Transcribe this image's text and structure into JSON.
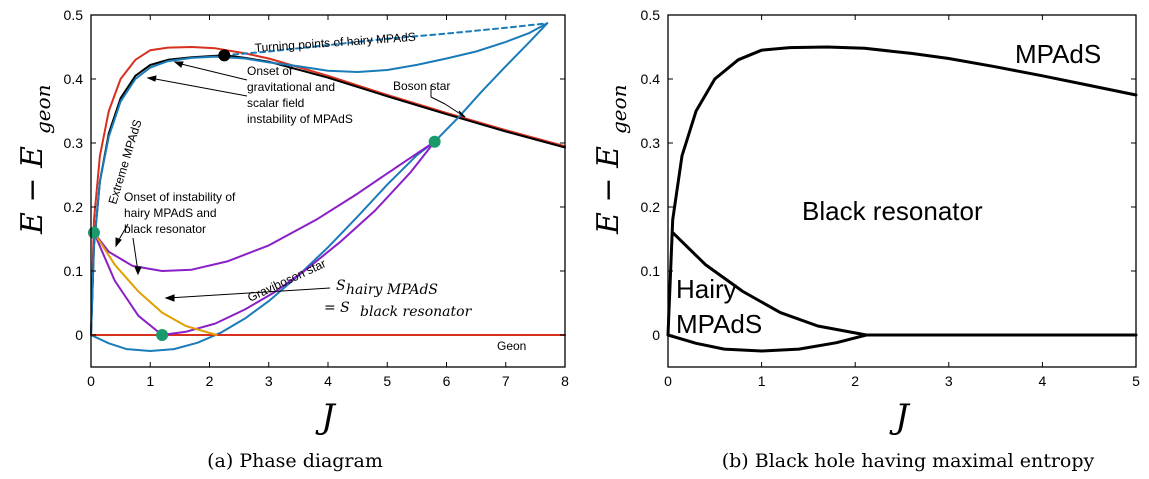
{
  "figure": {
    "panel_a_caption": "(a) Phase diagram",
    "panel_b_caption": "(b) Black hole having maximal entropy"
  },
  "colors": {
    "red": "#d7301f",
    "blue": "#1a7bb9",
    "purple": "#8a1fc8",
    "orange": "#e0a000",
    "green": "#1a9a6a",
    "black": "#000000"
  },
  "chart_data": [
    {
      "type": "line",
      "xlabel": "J",
      "ylabel_main": "E − E",
      "ylabel_sub": "geon",
      "xlim": [
        0,
        8
      ],
      "ylim": [
        -0.05,
        0.5
      ],
      "xticks": [
        "0",
        "1",
        "2",
        "3",
        "4",
        "5",
        "6",
        "7",
        "8"
      ],
      "yticks": [
        "0",
        "0.1",
        "0.2",
        "0.3",
        "0.4",
        "0.5"
      ],
      "series": [
        {
          "name": "Extreme MPAdS",
          "color": "red",
          "x": [
            0,
            0.05,
            0.15,
            0.3,
            0.5,
            0.75,
            1.0,
            1.3,
            1.7,
            2.1,
            2.6,
            3.0,
            4.0,
            5.0,
            6.0,
            7.0,
            8.0
          ],
          "y": [
            0,
            0.18,
            0.28,
            0.35,
            0.4,
            0.43,
            0.445,
            0.449,
            0.45,
            0.448,
            0.44,
            0.432,
            0.405,
            0.375,
            0.347,
            0.32,
            0.295
          ]
        },
        {
          "name": "Onset of gravitational and scalar field instability of MPAdS",
          "color": "black",
          "x": [
            0,
            0.05,
            0.15,
            0.3,
            0.5,
            0.75,
            1.0,
            1.3,
            1.7,
            2.05,
            2.25,
            2.6,
            3.0,
            4.0,
            5.0,
            6.0,
            7.0,
            8.0
          ],
          "y": [
            0,
            0.14,
            0.24,
            0.315,
            0.37,
            0.405,
            0.422,
            0.43,
            0.434,
            0.436,
            0.437,
            0.433,
            0.427,
            0.402,
            0.373,
            0.345,
            0.318,
            0.293
          ]
        },
        {
          "name": "Boson star",
          "color": "blue",
          "x": [
            0,
            0.05,
            0.15,
            0.3,
            0.5,
            0.75,
            1.0,
            1.3,
            1.7,
            2.1,
            2.6,
            3.0,
            3.5,
            4.0,
            4.5,
            5.0,
            5.5,
            6.0,
            6.5,
            7.0,
            7.4,
            7.7
          ],
          "y": [
            0,
            0.14,
            0.24,
            0.31,
            0.365,
            0.4,
            0.418,
            0.428,
            0.433,
            0.435,
            0.432,
            0.426,
            0.42,
            0.413,
            0.411,
            0.414,
            0.422,
            0.432,
            0.443,
            0.458,
            0.472,
            0.487
          ]
        },
        {
          "name": "Graviboson star",
          "color": "blue",
          "x": [
            0,
            0.3,
            0.6,
            1.0,
            1.4,
            1.8,
            2.2,
            2.6,
            3.0,
            3.5,
            4.0,
            4.5,
            5.0,
            5.5,
            5.8,
            6.2,
            6.6,
            7.0,
            7.4,
            7.7
          ],
          "y": [
            0,
            -0.013,
            -0.022,
            -0.025,
            -0.022,
            -0.012,
            0.004,
            0.026,
            0.053,
            0.093,
            0.137,
            0.185,
            0.235,
            0.281,
            0.302,
            0.34,
            0.381,
            0.42,
            0.458,
            0.487
          ]
        },
        {
          "name": "Turning points of hairy MPAdS",
          "color": "blue",
          "dashed": true,
          "x": [
            2.25,
            3.0,
            4.0,
            5.0,
            6.0,
            7.0,
            7.7
          ],
          "y": [
            0.437,
            0.443,
            0.453,
            0.463,
            0.471,
            0.48,
            0.487
          ]
        },
        {
          "name": "Onset of instability of hairy MPAdS and black resonator",
          "color": "purple",
          "x": [
            0.05,
            0.3,
            0.7,
            1.2,
            1.7,
            2.3,
            3.0,
            3.8,
            4.5,
            5.2,
            5.8
          ],
          "y": [
            0.16,
            0.13,
            0.108,
            0.1,
            0.102,
            0.115,
            0.14,
            0.18,
            0.221,
            0.265,
            0.302
          ]
        },
        {
          "name": "Geon",
          "color": "red",
          "x": [
            0,
            8
          ],
          "y": [
            0,
            0
          ]
        },
        {
          "name": "",
          "color": "purple",
          "x": [
            0.05,
            0.4,
            0.8,
            1.2,
            1.6,
            2.1,
            2.6,
            3.1,
            3.6,
            4.2,
            4.8,
            5.4,
            5.8
          ],
          "y": [
            0.16,
            0.085,
            0.03,
            0.0,
            0.005,
            0.018,
            0.04,
            0.067,
            0.1,
            0.145,
            0.195,
            0.255,
            0.302
          ]
        },
        {
          "name": "S hairy MPAdS = S black resonator",
          "color": "orange",
          "x": [
            0.05,
            0.4,
            0.8,
            1.2,
            1.6,
            2.12
          ],
          "y": [
            0.16,
            0.11,
            0.068,
            0.035,
            0.014,
            0.0
          ]
        }
      ],
      "points": [
        {
          "x": 0.05,
          "y": 0.16,
          "color": "green"
        },
        {
          "x": 1.2,
          "y": 0.0,
          "color": "green"
        },
        {
          "x": 5.8,
          "y": 0.302,
          "color": "green"
        },
        {
          "x": 2.25,
          "y": 0.437,
          "color": "black"
        }
      ],
      "annotations": {
        "turning_points": "Turning points of hairy MPAdS",
        "onset_grav_1": "Onset of",
        "onset_grav_2": "gravitational and",
        "onset_grav_3": "scalar field",
        "onset_grav_4": "instability of MPAdS",
        "boson_star": "Boson star",
        "extreme_mpads": "Extreme MPAdS",
        "onset_inst_1": "Onset of instability of",
        "onset_inst_2": "hairy MPAdS and",
        "onset_inst_3": "black resonator",
        "graviboson_star": "Graviboson star",
        "entropy_top_s": "S",
        "entropy_top_sub": "hairy MPAdS",
        "entropy_bot_eq": "= S",
        "entropy_bot_sub": "black resonator",
        "geon": "Geon"
      }
    },
    {
      "type": "line",
      "xlabel": "J",
      "ylabel_main": "E − E",
      "ylabel_sub": "geon",
      "xlim": [
        0,
        5
      ],
      "ylim": [
        -0.05,
        0.5
      ],
      "xticks": [
        "0",
        "1",
        "2",
        "3",
        "4",
        "5"
      ],
      "yticks": [
        "0",
        "0.1",
        "0.2",
        "0.3",
        "0.4",
        "0.5"
      ],
      "series": [
        {
          "name": "MPAdS",
          "color": "black",
          "x": [
            0,
            0.05,
            0.15,
            0.3,
            0.5,
            0.75,
            1.0,
            1.3,
            1.7,
            2.1,
            2.6,
            3.0,
            3.5,
            4.0,
            4.5,
            5.0
          ],
          "y": [
            0,
            0.18,
            0.28,
            0.35,
            0.4,
            0.43,
            0.445,
            0.449,
            0.45,
            0.448,
            0.44,
            0.432,
            0.419,
            0.405,
            0.39,
            0.375
          ]
        },
        {
          "name": "",
          "color": "black",
          "x": [
            0.05,
            0.4,
            0.8,
            1.2,
            1.6,
            2.12
          ],
          "y": [
            0.16,
            0.11,
            0.068,
            0.035,
            0.014,
            0.0
          ]
        },
        {
          "name": "",
          "color": "black",
          "x": [
            0,
            0.3,
            0.6,
            1.0,
            1.4,
            1.8,
            2.12,
            3.0,
            4.0,
            5.0
          ],
          "y": [
            0,
            -0.013,
            -0.022,
            -0.025,
            -0.022,
            -0.012,
            0.0,
            0.0,
            0.0,
            0.0
          ]
        }
      ],
      "regions": {
        "mpads": "MPAdS",
        "black_resonator": "Black resonator",
        "hairy_1": "Hairy",
        "hairy_2": "MPAdS"
      }
    }
  ]
}
